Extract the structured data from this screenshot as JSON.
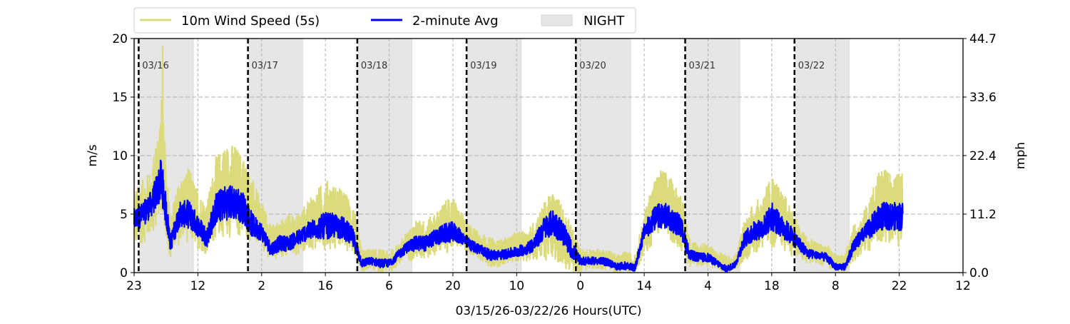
{
  "chart_data": {
    "type": "line",
    "xlabel": "03/15/26-03/22/26  Hours(UTC)",
    "ylabel_left": "m/s",
    "ylabel_right": "mph",
    "ylim": [
      0,
      20
    ],
    "xlim_hours_from_start": [
      0,
      182
    ],
    "start_label": "03/15 23:00 UTC",
    "x_tick_labels": [
      "23",
      "12",
      "2",
      "16",
      "6",
      "20",
      "10",
      "0",
      "14",
      "4",
      "18",
      "8",
      "22",
      "12"
    ],
    "x_tick_hours": [
      0,
      14,
      28,
      42,
      56,
      70,
      84,
      98,
      112,
      126,
      140,
      154,
      168,
      182
    ],
    "y_ticks_left": [
      "0",
      "5",
      "10",
      "15",
      "20"
    ],
    "y_ticks_right": [
      "0.0",
      "11.2",
      "22.4",
      "33.6",
      "44.7"
    ],
    "y_tick_values": [
      0,
      5,
      10,
      15,
      20
    ],
    "grid": true,
    "legend_position": "top-left, outside",
    "legend": [
      "10m Wind Speed (5s)",
      "2-minute Avg",
      "NIGHT"
    ],
    "colors": {
      "speed_5s": "#dcdb7c",
      "avg_2min": "#0000ff",
      "night": "#e6e6e6"
    },
    "day_markers": [
      {
        "label": "03/16",
        "hour": 1
      },
      {
        "label": "03/17",
        "hour": 25
      },
      {
        "label": "03/18",
        "hour": 49
      },
      {
        "label": "03/19",
        "hour": 73
      },
      {
        "label": "03/20",
        "hour": 97
      },
      {
        "label": "03/21",
        "hour": 121
      },
      {
        "label": "03/22",
        "hour": 145
      }
    ],
    "night_hours_after_midnight": [
      0.2,
      12.0
    ],
    "data_end_hour": 168.8,
    "sample_hours": [
      0,
      2,
      4,
      6,
      8,
      10,
      12,
      14,
      16,
      18,
      20,
      22,
      24,
      26,
      28,
      30,
      32,
      34,
      36,
      38,
      40,
      42,
      44,
      46,
      48,
      50,
      52,
      54,
      56,
      58,
      60,
      62,
      64,
      66,
      68,
      70,
      72,
      74,
      76,
      78,
      80,
      82,
      84,
      86,
      88,
      90,
      92,
      94,
      96,
      98,
      100,
      102,
      104,
      106,
      108,
      110,
      112,
      114,
      116,
      118,
      120,
      122,
      124,
      126,
      128,
      130,
      132,
      134,
      136,
      138,
      140,
      142,
      144,
      146,
      148,
      150,
      152,
      154,
      156,
      158,
      160,
      162,
      164,
      166,
      168
    ],
    "avg_2min": [
      4.5,
      5,
      6,
      8,
      2.5,
      5,
      5,
      4,
      3,
      5.5,
      6,
      6,
      5.5,
      4,
      3.5,
      2,
      2.5,
      2.5,
      3,
      3.5,
      3.8,
      4,
      4,
      3.8,
      3,
      0.8,
      1,
      0.8,
      0.8,
      1.5,
      2.2,
      2.5,
      2.5,
      3,
      3.3,
      3.5,
      3,
      2.3,
      2,
      1.5,
      1.5,
      1.6,
      1.8,
      2,
      2.5,
      3.8,
      4.3,
      3.5,
      2,
      1,
      1,
      1,
      0.9,
      0.5,
      0.6,
      0.4,
      3.5,
      4.5,
      5,
      4.5,
      4,
      1.5,
      1.3,
      1.3,
      0.8,
      0.3,
      0.7,
      2.8,
      3.5,
      3.8,
      4.8,
      4,
      3.3,
      2.5,
      1.6,
      1.5,
      1.3,
      0.5,
      0.5,
      2.3,
      3.2,
      4,
      4.8,
      4.8,
      4.8
    ],
    "speed_5s_min": [
      2,
      2.5,
      3,
      5,
      1,
      2.5,
      2.5,
      2,
      1.5,
      3,
      3,
      3,
      3,
      2.5,
      2,
      1,
      1,
      1.5,
      1.5,
      2,
      2,
      2,
      2,
      2,
      1.5,
      0,
      0.3,
      0,
      0,
      0.5,
      1,
      1,
      1,
      1.5,
      1.5,
      2,
      2,
      1.5,
      1,
      0.5,
      0.5,
      0.8,
      1,
      1,
      1,
      1,
      1,
      0.5,
      0,
      0,
      0.3,
      0.3,
      0.2,
      0,
      0,
      0,
      1.5,
      2.5,
      3,
      2.5,
      2,
      0.5,
      0.5,
      0.5,
      0.2,
      0,
      0.2,
      1,
      1.5,
      2,
      2,
      2,
      1.5,
      1,
      0.8,
      0.8,
      0.5,
      0,
      0,
      1,
      1.5,
      2,
      2.5,
      2.5,
      2
    ],
    "speed_5s_max": [
      7,
      8,
      9,
      15,
      5,
      8,
      9,
      7,
      6,
      10,
      11,
      11,
      10,
      8,
      6,
      4,
      4.5,
      5,
      5,
      6,
      7,
      8,
      7.5,
      7,
      6,
      2,
      2,
      2,
      1.8,
      2.5,
      3.5,
      4.5,
      4.5,
      5,
      6,
      6.5,
      5,
      4,
      3.5,
      3,
      2.8,
      3,
      3.5,
      3.5,
      4.5,
      6,
      7,
      6,
      4,
      2,
      2,
      2,
      2,
      1.5,
      1.8,
      1.5,
      5,
      8,
      9,
      8,
      7,
      3,
      2.5,
      2.5,
      1.8,
      1.5,
      1.5,
      4.5,
      6,
      6.5,
      8.5,
      7,
      6,
      4,
      3,
      2.5,
      2.5,
      1.5,
      1.5,
      4,
      5,
      7,
      9,
      8.5,
      8.5
    ],
    "peak_5s": {
      "hour": 6.3,
      "value": 19.3
    }
  }
}
